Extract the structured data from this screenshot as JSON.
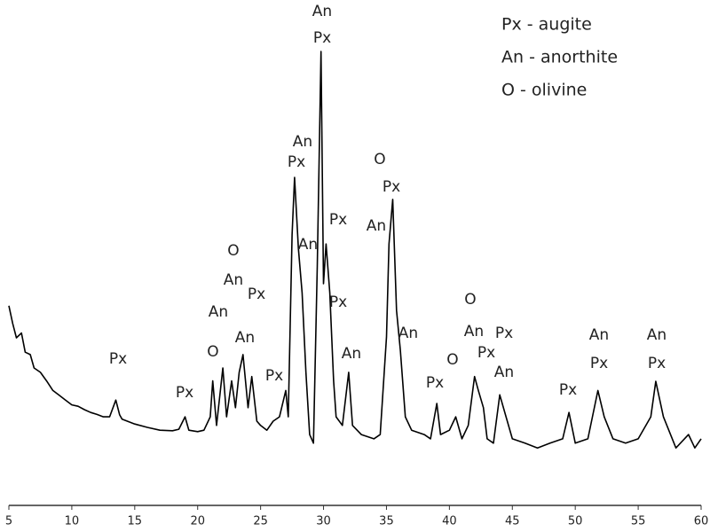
{
  "chart_data": {
    "type": "line",
    "color": "#000000",
    "x": [
      5.0,
      5.3,
      5.6,
      6.0,
      6.3,
      6.7,
      7.0,
      7.5,
      8.0,
      8.5,
      9.0,
      9.5,
      10,
      10.5,
      11,
      11.5,
      12,
      12.5,
      13,
      13.5,
      13.8,
      14,
      15,
      16,
      17,
      18,
      18.5,
      19,
      19.3,
      20,
      20.5,
      21,
      21.2,
      21.5,
      22,
      22.3,
      22.7,
      23,
      23.3,
      23.6,
      24,
      24.3,
      24.7,
      25,
      25.5,
      26,
      26.5,
      27,
      27.2,
      27.5,
      27.7,
      28,
      28.3,
      28.6,
      28.9,
      29.2,
      29.5,
      29.8,
      30.0,
      30.2,
      30.5,
      30.8,
      31,
      31.5,
      32,
      32.3,
      33,
      34,
      34.5,
      35,
      35.2,
      35.5,
      35.8,
      36.1,
      36.5,
      37,
      38,
      38.5,
      39,
      39.3,
      40,
      40.5,
      41,
      41.5,
      42,
      42.3,
      42.7,
      43,
      43.5,
      44,
      44.5,
      45,
      46,
      47,
      48,
      49,
      49.5,
      50,
      51,
      51.8,
      52.3,
      53,
      54,
      55,
      56,
      56.4,
      57,
      58,
      59,
      59.5,
      60
    ],
    "values": [
      41.7,
      38,
      35,
      36,
      32,
      31.5,
      28.7,
      27.8,
      26,
      24,
      23,
      22,
      21,
      20.7,
      20,
      19.4,
      19,
      18.5,
      18.5,
      22,
      18.9,
      18,
      17,
      16.3,
      15.7,
      15.6,
      15.9,
      18.5,
      15.7,
      15.4,
      15.7,
      18.5,
      26,
      16.7,
      28.7,
      18.5,
      26,
      20.4,
      27.8,
      31.5,
      20.4,
      26.9,
      17.6,
      16.7,
      15.7,
      17.6,
      18.5,
      24,
      18.5,
      56.5,
      68.5,
      53.7,
      44.4,
      27.8,
      14.8,
      13,
      50,
      94.8,
      46.3,
      54.6,
      44.4,
      26,
      18.5,
      16.7,
      27.8,
      16.7,
      14.8,
      13.9,
      14.8,
      35.2,
      54.6,
      63.9,
      40.7,
      32.4,
      18.5,
      15.7,
      14.8,
      13.9,
      21.3,
      14.8,
      15.7,
      18.5,
      13.9,
      16.7,
      26.9,
      24,
      20.4,
      13.9,
      13,
      23.1,
      18.5,
      13.9,
      13,
      12,
      13,
      13.9,
      19.4,
      13,
      13.9,
      24,
      18.5,
      13.9,
      13,
      13.9,
      18.5,
      25.9,
      18.5,
      12,
      14.8,
      12,
      13.9
    ],
    "xlim": [
      5,
      60
    ],
    "xticks": [
      5,
      10,
      15,
      20,
      25,
      30,
      35,
      40,
      45,
      50,
      55,
      60
    ],
    "ylim": [
      0,
      100
    ],
    "legend": [
      "Px - augite",
      "An - anorthite",
      "O - olivine"
    ],
    "annotations": [
      "Px",
      "Px",
      "O",
      "An",
      "O",
      "An",
      "Px",
      "An",
      "Px",
      "An",
      "Px",
      "An",
      "An",
      "Px",
      "Px",
      "Px",
      "An",
      "O",
      "Px",
      "An",
      "An",
      "Px",
      "O",
      "O",
      "An",
      "Px",
      "Px",
      "An",
      "Px",
      "An",
      "Px",
      "An",
      "Px"
    ]
  }
}
